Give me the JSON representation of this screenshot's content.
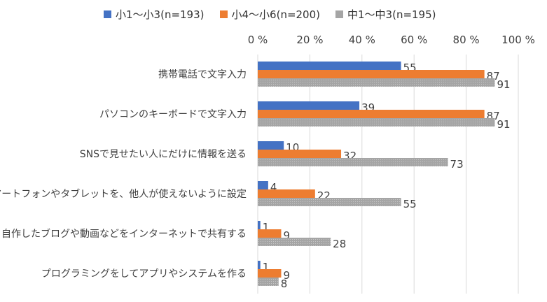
{
  "chart_data": {
    "type": "bar",
    "orientation": "horizontal",
    "xlim": [
      0,
      100
    ],
    "x_ticks": [
      "0 %",
      "20 %",
      "40 %",
      "60 %",
      "80 %",
      "100 %"
    ],
    "grid": true,
    "legend_position": "top",
    "categories": [
      "携帯電話で文字入力",
      "パソコンのキーボードで文字入力",
      "SNSで見せたい人にだけに情報を送る",
      "スマートフォンやタブレットを、他人が使えないように設定",
      "自作したブログや動画などをインターネットで共有する",
      "プログラミングをしてアプリやシステムを作る"
    ],
    "series": [
      {
        "name": "小1～小3(n=193)",
        "color": "#4472c4",
        "values": [
          55,
          39,
          10,
          4,
          1,
          1
        ]
      },
      {
        "name": "小4～小6(n=200)",
        "color": "#ed7d31",
        "values": [
          87,
          87,
          32,
          22,
          9,
          9
        ]
      },
      {
        "name": "中1～中3(n=195)",
        "color": "#a5a5a5",
        "values": [
          91,
          91,
          73,
          55,
          28,
          8
        ]
      }
    ]
  }
}
